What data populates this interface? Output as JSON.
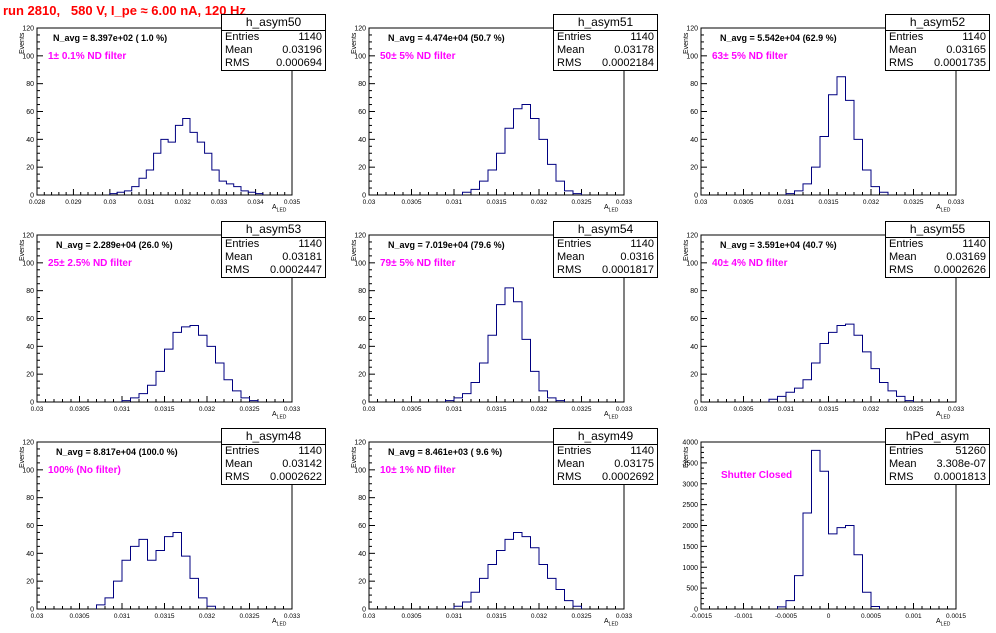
{
  "title": "run 2810,   580 V, I_pe ≈ 6.00 nA, 120 Hz",
  "colors": {
    "title": "#ff0000",
    "histogram": "#000080",
    "filter_label": "#ff00ff",
    "frame": "#000000"
  },
  "axis_label_y": "Events",
  "axis_label_x": "A",
  "axis_label_x_sub": "LED",
  "stat_labels": {
    "entries": "Entries",
    "mean": "Mean",
    "rms": "RMS"
  },
  "chart_data": [
    {
      "type": "bar",
      "name": "h_asym50",
      "navg": "N_avg = 8.397e+02 ( 1.0 %)",
      "filter": "1± 0.1% ND filter",
      "entries": "1140",
      "mean": "0.03196",
      "rms": "0.000694",
      "xlim": [
        0.028,
        0.035
      ],
      "ylim": [
        0,
        120
      ],
      "xticks": [
        0.028,
        0.029,
        0.03,
        0.031,
        0.032,
        0.033,
        0.034,
        0.035
      ],
      "xtick_labels": [
        "0.028",
        "0.029",
        "0.03",
        "0.031",
        "0.032",
        "0.033",
        "0.034",
        "0.035"
      ],
      "yticks": [
        0,
        20,
        40,
        60,
        80,
        100,
        120
      ],
      "x": [
        0.0301,
        0.0303,
        0.0305,
        0.0307,
        0.0309,
        0.0311,
        0.0313,
        0.0315,
        0.0317,
        0.0319,
        0.0321,
        0.0323,
        0.0325,
        0.0327,
        0.0329,
        0.0331,
        0.0333,
        0.0335,
        0.0337,
        0.0339,
        0.0341
      ],
      "values": [
        1,
        2,
        3,
        6,
        12,
        18,
        30,
        40,
        38,
        50,
        55,
        45,
        38,
        30,
        18,
        10,
        8,
        6,
        3,
        2,
        1
      ]
    },
    {
      "type": "bar",
      "name": "h_asym51",
      "navg": "N_avg = 4.474e+04 (50.7 %)",
      "filter": "50± 5% ND filter",
      "entries": "1140",
      "mean": "0.03178",
      "rms": "0.0002184",
      "xlim": [
        0.03,
        0.033
      ],
      "ylim": [
        0,
        120
      ],
      "xticks": [
        0.03,
        0.0305,
        0.031,
        0.0315,
        0.032,
        0.0325,
        0.033
      ],
      "xtick_labels": [
        "0.03",
        "0.0305",
        "0.031",
        "0.0315",
        "0.032",
        "0.0325",
        "0.033"
      ],
      "yticks": [
        0,
        20,
        40,
        60,
        80,
        100,
        120
      ],
      "x": [
        0.03115,
        0.03125,
        0.03135,
        0.03145,
        0.03155,
        0.03165,
        0.03175,
        0.03185,
        0.03195,
        0.03205,
        0.03215,
        0.03225,
        0.03235,
        0.03245
      ],
      "values": [
        2,
        4,
        10,
        18,
        30,
        48,
        62,
        65,
        55,
        40,
        22,
        10,
        3,
        1
      ]
    },
    {
      "type": "bar",
      "name": "h_asym52",
      "navg": "N_avg = 5.542e+04 (62.9 %)",
      "filter": "63± 5% ND filter",
      "entries": "1140",
      "mean": "0.03165",
      "rms": "0.0001735",
      "xlim": [
        0.03,
        0.033
      ],
      "ylim": [
        0,
        120
      ],
      "xticks": [
        0.03,
        0.0305,
        0.031,
        0.0315,
        0.032,
        0.0325,
        0.033
      ],
      "xtick_labels": [
        "0.03",
        "0.0305",
        "0.031",
        "0.0315",
        "0.032",
        "0.0325",
        "0.033"
      ],
      "yticks": [
        0,
        20,
        40,
        60,
        80,
        100,
        120
      ],
      "x": [
        0.03105,
        0.03115,
        0.03125,
        0.03135,
        0.03145,
        0.03155,
        0.03165,
        0.03175,
        0.03185,
        0.03195,
        0.03205,
        0.03215
      ],
      "values": [
        1,
        3,
        8,
        20,
        42,
        72,
        85,
        68,
        40,
        18,
        6,
        2
      ]
    },
    {
      "type": "bar",
      "name": "h_asym53",
      "navg": "N_avg = 2.289e+04 (26.0 %)",
      "filter": "25± 2.5% ND filter",
      "entries": "1140",
      "mean": "0.03181",
      "rms": "0.0002447",
      "xlim": [
        0.03,
        0.033
      ],
      "ylim": [
        0,
        120
      ],
      "xticks": [
        0.03,
        0.0305,
        0.031,
        0.0315,
        0.032,
        0.0325,
        0.033
      ],
      "xtick_labels": [
        "0.03",
        "0.0305",
        "0.031",
        "0.0315",
        "0.032",
        "0.0325",
        "0.033"
      ],
      "yticks": [
        0,
        20,
        40,
        60,
        80,
        100,
        120
      ],
      "x": [
        0.03105,
        0.03115,
        0.03125,
        0.03135,
        0.03145,
        0.03155,
        0.03165,
        0.03175,
        0.03185,
        0.03195,
        0.03205,
        0.03215,
        0.03225,
        0.03235,
        0.03245,
        0.03255
      ],
      "values": [
        1,
        3,
        6,
        12,
        22,
        38,
        50,
        54,
        55,
        48,
        40,
        28,
        16,
        8,
        3,
        1
      ]
    },
    {
      "type": "bar",
      "name": "h_asym54",
      "navg": "N_avg = 7.019e+04 (79.6 %)",
      "filter": "79± 5% ND filter",
      "entries": "1140",
      "mean": "0.0316",
      "rms": "0.0001817",
      "xlim": [
        0.03,
        0.033
      ],
      "ylim": [
        0,
        120
      ],
      "xticks": [
        0.03,
        0.0305,
        0.031,
        0.0315,
        0.032,
        0.0325,
        0.033
      ],
      "xtick_labels": [
        "0.03",
        "0.0305",
        "0.031",
        "0.0315",
        "0.032",
        "0.0325",
        "0.033"
      ],
      "yticks": [
        0,
        20,
        40,
        60,
        80,
        100,
        120
      ],
      "x": [
        0.03095,
        0.03105,
        0.03115,
        0.03125,
        0.03135,
        0.03145,
        0.03155,
        0.03165,
        0.03175,
        0.03185,
        0.03195,
        0.03205,
        0.03215,
        0.03225
      ],
      "values": [
        1,
        3,
        6,
        14,
        28,
        48,
        70,
        82,
        72,
        45,
        22,
        8,
        3,
        1
      ]
    },
    {
      "type": "bar",
      "name": "h_asym55",
      "navg": "N_avg = 3.591e+04 (40.7 %)",
      "filter": "40± 4% ND filter",
      "entries": "1140",
      "mean": "0.03169",
      "rms": "0.0002626",
      "xlim": [
        0.03,
        0.033
      ],
      "ylim": [
        0,
        120
      ],
      "xticks": [
        0.03,
        0.0305,
        0.031,
        0.0315,
        0.032,
        0.0325,
        0.033
      ],
      "xtick_labels": [
        "0.03",
        "0.0305",
        "0.031",
        "0.0315",
        "0.032",
        "0.0325",
        "0.033"
      ],
      "yticks": [
        0,
        20,
        40,
        60,
        80,
        100,
        120
      ],
      "x": [
        0.03085,
        0.03095,
        0.03105,
        0.03115,
        0.03125,
        0.03135,
        0.03145,
        0.03155,
        0.03165,
        0.03175,
        0.03185,
        0.03195,
        0.03205,
        0.03215,
        0.03225,
        0.03235,
        0.03245
      ],
      "values": [
        2,
        4,
        7,
        10,
        16,
        28,
        42,
        50,
        55,
        56,
        48,
        36,
        24,
        14,
        8,
        4,
        1
      ]
    },
    {
      "type": "bar",
      "name": "h_asym48",
      "navg": "N_avg = 8.817e+04 (100.0 %)",
      "filter": "100% (No filter)",
      "entries": "1140",
      "mean": "0.03142",
      "rms": "0.0002622",
      "xlim": [
        0.03,
        0.033
      ],
      "ylim": [
        0,
        120
      ],
      "xticks": [
        0.03,
        0.0305,
        0.031,
        0.0315,
        0.032,
        0.0325,
        0.033
      ],
      "xtick_labels": [
        "0.03",
        "0.0305",
        "0.031",
        "0.0315",
        "0.032",
        "0.0325",
        "0.033"
      ],
      "yticks": [
        0,
        20,
        40,
        60,
        80,
        100,
        120
      ],
      "x": [
        0.03075,
        0.03085,
        0.03095,
        0.03105,
        0.03115,
        0.03125,
        0.03135,
        0.03145,
        0.03155,
        0.03165,
        0.03175,
        0.03185,
        0.03195,
        0.03205
      ],
      "values": [
        3,
        8,
        20,
        35,
        45,
        50,
        35,
        42,
        52,
        55,
        38,
        22,
        8,
        2
      ]
    },
    {
      "type": "bar",
      "name": "h_asym49",
      "navg": "N_avg = 8.461e+03 ( 9.6 %)",
      "filter": "10± 1% ND filter",
      "entries": "1140",
      "mean": "0.03175",
      "rms": "0.0002692",
      "xlim": [
        0.03,
        0.033
      ],
      "ylim": [
        0,
        120
      ],
      "xticks": [
        0.03,
        0.0305,
        0.031,
        0.0315,
        0.032,
        0.0325,
        0.033
      ],
      "xtick_labels": [
        "0.03",
        "0.0305",
        "0.031",
        "0.0315",
        "0.032",
        "0.0325",
        "0.033"
      ],
      "yticks": [
        0,
        20,
        40,
        60,
        80,
        100,
        120
      ],
      "x": [
        0.03105,
        0.03115,
        0.03125,
        0.03135,
        0.03145,
        0.03155,
        0.03165,
        0.03175,
        0.03185,
        0.03195,
        0.03205,
        0.03215,
        0.03225,
        0.03235,
        0.03245
      ],
      "values": [
        2,
        5,
        12,
        22,
        32,
        42,
        50,
        55,
        52,
        44,
        32,
        22,
        14,
        6,
        2
      ]
    },
    {
      "type": "bar",
      "name": "hPed_asym",
      "navg": "",
      "filter": "Shutter Closed",
      "entries": "51260",
      "mean": "3.308e-07",
      "rms": "0.0001813",
      "xlim": [
        -0.0015,
        0.0015
      ],
      "ylim": [
        0,
        4000
      ],
      "xticks": [
        -0.0015,
        -0.001,
        -0.0005,
        0,
        0.0005,
        0.001,
        0.0015
      ],
      "xtick_labels": [
        "-0.0015",
        "-0.001",
        "-0.0005",
        "0",
        "0.0005",
        "0.001",
        "0.0015"
      ],
      "yticks": [
        0,
        500,
        1000,
        1500,
        2000,
        2500,
        3000,
        3500,
        4000
      ],
      "x": [
        -0.00055,
        -0.00045,
        -0.00035,
        -0.00025,
        -0.00015,
        -5e-05,
        5e-05,
        0.00015,
        0.00025,
        0.00035,
        0.00045,
        0.00055
      ],
      "values": [
        50,
        200,
        800,
        2300,
        3800,
        3300,
        1800,
        1950,
        2000,
        1300,
        400,
        60
      ]
    }
  ]
}
